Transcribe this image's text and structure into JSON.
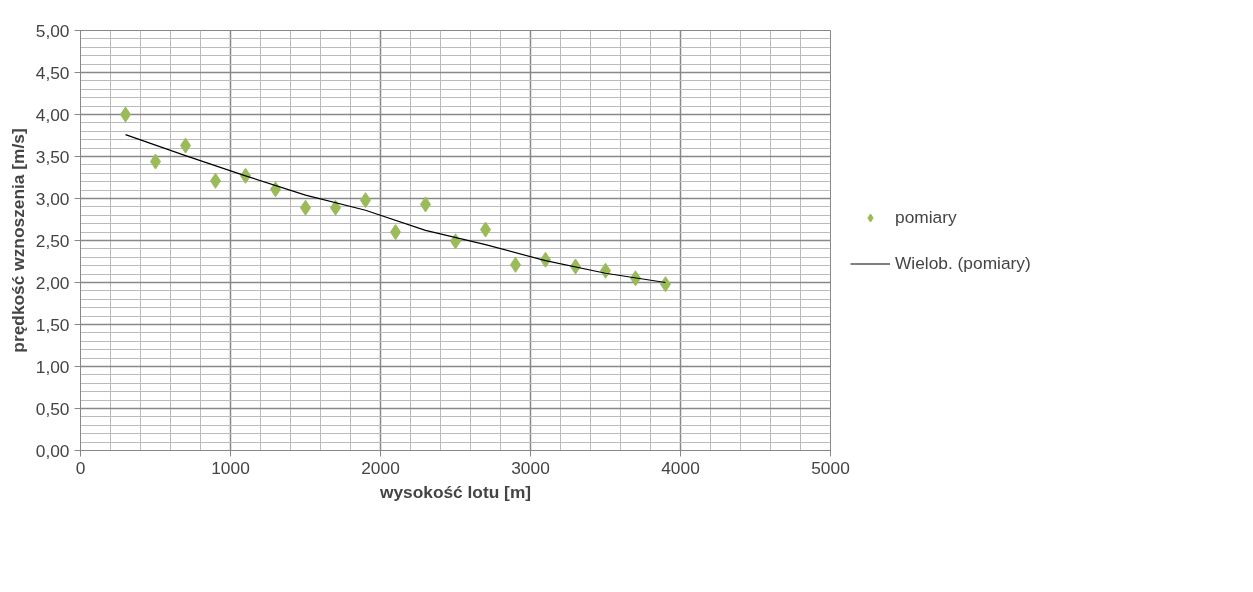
{
  "chart_data": {
    "type": "scatter",
    "xlabel": "wysokość lotu [m]",
    "ylabel": "prędkość wznoszenia [m/s]",
    "xlim": [
      0,
      5000
    ],
    "xticks": [
      0,
      1000,
      2000,
      3000,
      4000,
      5000
    ],
    "ylim": [
      0,
      5
    ],
    "yticks": [
      {
        "value": 0,
        "label": "0,00"
      },
      {
        "value": 0.5,
        "label": "0,50"
      },
      {
        "value": 1,
        "label": "1,00"
      },
      {
        "value": 1.5,
        "label": "1,50"
      },
      {
        "value": 2,
        "label": "2,00"
      },
      {
        "value": 2.5,
        "label": "2,50"
      },
      {
        "value": 3,
        "label": "3,00"
      },
      {
        "value": 3.5,
        "label": "3,50"
      },
      {
        "value": 4,
        "label": "4,00"
      },
      {
        "value": 4.5,
        "label": "4,50"
      },
      {
        "value": 5,
        "label": "5,00"
      }
    ],
    "grid": true,
    "legend": "right",
    "series": [
      {
        "name": "pomiary",
        "color": "#9bbb59",
        "marker": "diamond",
        "x": [
          300,
          500,
          700,
          900,
          1100,
          1300,
          1500,
          1700,
          1900,
          2100,
          2300,
          2500,
          2700,
          2900,
          3100,
          3300,
          3500,
          3700,
          3900
        ],
        "values": [
          4.0,
          3.44,
          3.63,
          3.21,
          3.27,
          3.11,
          2.89,
          2.89,
          2.98,
          2.6,
          2.93,
          2.49,
          2.63,
          2.21,
          2.27,
          2.19,
          2.14,
          2.05,
          1.98
        ]
      },
      {
        "name": "Wielob. (pomiary)",
        "type": "line",
        "color": "#000000",
        "x": [
          300,
          700,
          1100,
          1500,
          1900,
          2300,
          2700,
          3100,
          3500,
          3900
        ],
        "values": [
          3.76,
          3.51,
          3.27,
          3.04,
          2.86,
          2.62,
          2.45,
          2.26,
          2.11,
          2.0
        ]
      }
    ]
  }
}
